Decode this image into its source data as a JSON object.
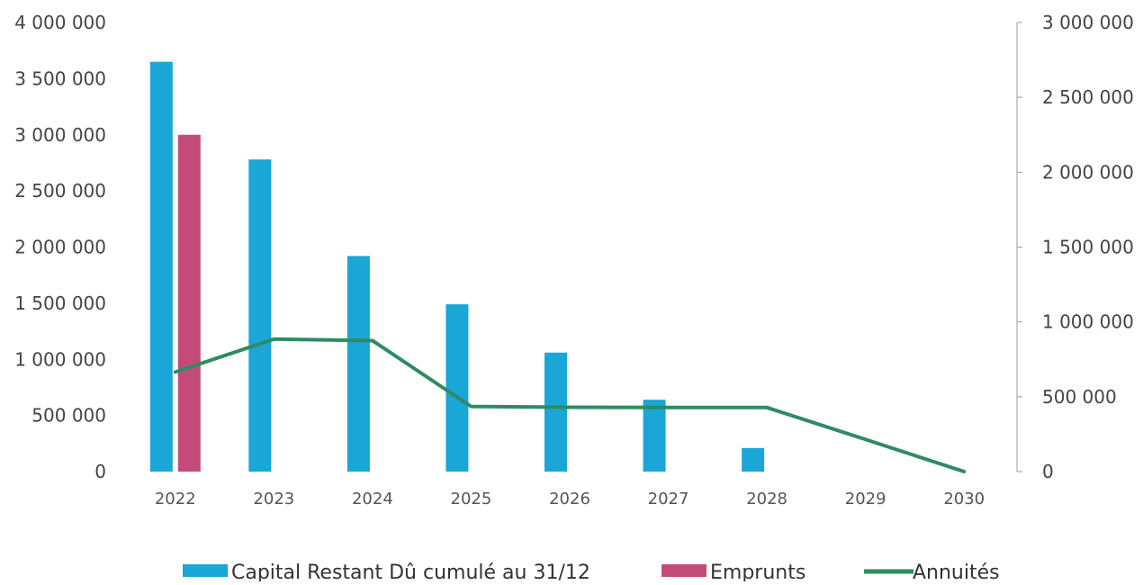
{
  "chart_data": {
    "type": "bar",
    "categories": [
      "2022",
      "2023",
      "2024",
      "2025",
      "2026",
      "2027",
      "2028",
      "2029",
      "2030"
    ],
    "y_left": {
      "range": [
        0,
        4000000
      ],
      "ticks": [
        0,
        500000,
        1000000,
        1500000,
        2000000,
        2500000,
        3000000,
        3500000,
        4000000
      ],
      "tick_labels": [
        "0",
        "500 000",
        "1 000 000",
        "1 500 000",
        "2 000 000",
        "2 500 000",
        "3 000 000",
        "3 500 000",
        "4 000 000"
      ]
    },
    "y_right": {
      "range": [
        0,
        3000000
      ],
      "ticks": [
        0,
        500000,
        1000000,
        1500000,
        2000000,
        2500000,
        3000000
      ],
      "tick_labels": [
        "0",
        "500 000",
        "1 000 000",
        "1 500 000",
        "2 000 000",
        "2 500 000",
        "3 000 000"
      ]
    },
    "series": [
      {
        "name": "Capital Restant Dû cumulé au 31/12",
        "type": "bar",
        "axis": "left",
        "color": "#1aa6d6",
        "values": [
          3650000,
          2780000,
          1920000,
          1490000,
          1060000,
          640000,
          210000,
          null,
          null
        ]
      },
      {
        "name": "Emprunts",
        "type": "bar",
        "axis": "left",
        "color": "#c34b7a",
        "values": [
          3000000,
          null,
          null,
          null,
          null,
          null,
          null,
          null,
          null
        ]
      },
      {
        "name": "Annuités",
        "type": "line",
        "axis": "right",
        "color": "#2e8b62",
        "values": [
          665000,
          885000,
          875000,
          435000,
          430000,
          428000,
          428000,
          215000,
          0
        ]
      }
    ],
    "legend": {
      "position": "bottom"
    },
    "grid": false
  }
}
